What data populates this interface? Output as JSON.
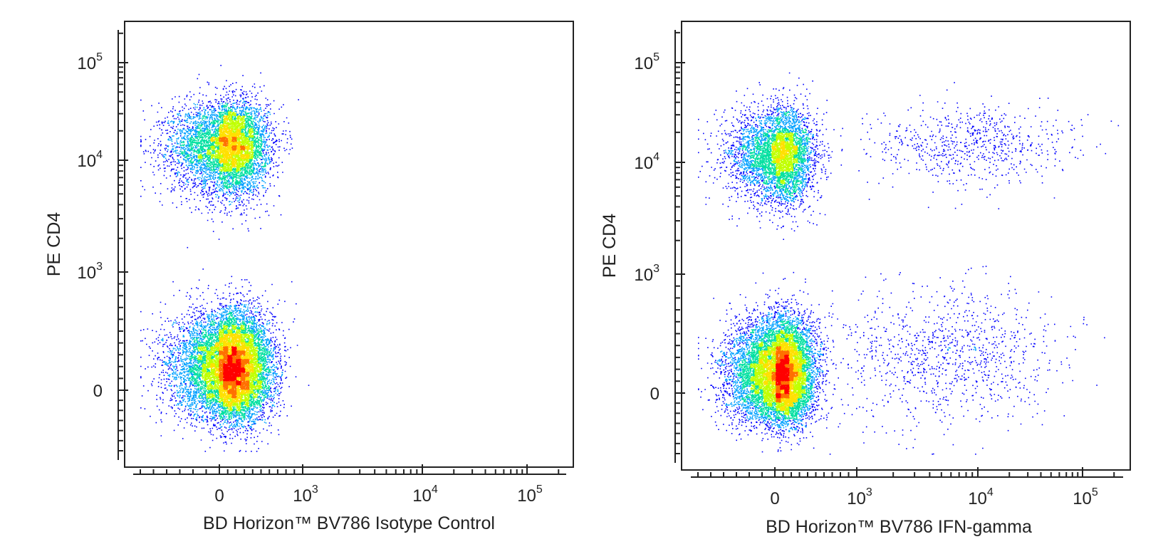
{
  "chart_data": [
    {
      "type": "scatter",
      "title": "",
      "xlabel": "BD Horizon™ BV786 Isotype Control",
      "ylabel": "PE CD4",
      "x_scale": "biexponential",
      "y_scale": "biexponential",
      "x_ticks": [
        {
          "value": 0,
          "base": "0",
          "exp": ""
        },
        {
          "value": 1000,
          "base": "10",
          "exp": "3"
        },
        {
          "value": 10000,
          "base": "10",
          "exp": "4"
        },
        {
          "value": 100000,
          "base": "10",
          "exp": "5"
        }
      ],
      "y_ticks": [
        {
          "value": 0,
          "base": "0",
          "exp": ""
        },
        {
          "value": 1000,
          "base": "10",
          "exp": "3"
        },
        {
          "value": 10000,
          "base": "10",
          "exp": "4"
        },
        {
          "value": 100000,
          "base": "10",
          "exp": "5"
        }
      ],
      "xlim": [
        -500,
        262144
      ],
      "ylim": [
        -250,
        262144
      ],
      "color_map": [
        "#0000ff",
        "#00a0ff",
        "#00e0a0",
        "#c0ff00",
        "#ffe000",
        "#ff7000",
        "#ff0000"
      ],
      "populations": [
        {
          "name_hidden": true,
          "center_x": 110,
          "center_y": 14000,
          "spread_x": 230,
          "spread_y": 0.22,
          "count": 7000
        },
        {
          "name_hidden": true,
          "center_x": 140,
          "center_y": 190,
          "spread_x": 230,
          "spread_y": 230,
          "count": 12000
        }
      ]
    },
    {
      "type": "scatter",
      "title": "",
      "xlabel": "BD Horizon™ BV786 IFN-gamma",
      "ylabel": "PE CD4",
      "x_scale": "biexponential",
      "y_scale": "biexponential",
      "x_ticks": [
        {
          "value": 0,
          "base": "0",
          "exp": ""
        },
        {
          "value": 1000,
          "base": "10",
          "exp": "3"
        },
        {
          "value": 10000,
          "base": "10",
          "exp": "4"
        },
        {
          "value": 100000,
          "base": "10",
          "exp": "5"
        }
      ],
      "y_ticks": [
        {
          "value": 0,
          "base": "0",
          "exp": ""
        },
        {
          "value": 1000,
          "base": "10",
          "exp": "3"
        },
        {
          "value": 10000,
          "base": "10",
          "exp": "4"
        },
        {
          "value": 100000,
          "base": "10",
          "exp": "5"
        }
      ],
      "xlim": [
        -500,
        262144
      ],
      "ylim": [
        -250,
        262144
      ],
      "color_map": [
        "#0000ff",
        "#00a0ff",
        "#00e0a0",
        "#c0ff00",
        "#ffe000",
        "#ff7000",
        "#ff0000"
      ],
      "populations": [
        {
          "name_hidden": true,
          "center_x": 60,
          "center_y": 12000,
          "spread_x": 200,
          "spread_y": 0.22,
          "count": 5000
        },
        {
          "name_hidden": true,
          "center_x": 60,
          "center_y": 170,
          "spread_x": 200,
          "spread_y": 220,
          "count": 11000
        },
        {
          "name_hidden": true,
          "center_x": 9000,
          "center_y": 15000,
          "spread_x": 0.45,
          "spread_y": 0.2,
          "count": 700
        },
        {
          "name_hidden": true,
          "center_x": 5000,
          "center_y": 300,
          "spread_x": 0.55,
          "spread_y": 300,
          "count": 1100
        }
      ]
    }
  ]
}
